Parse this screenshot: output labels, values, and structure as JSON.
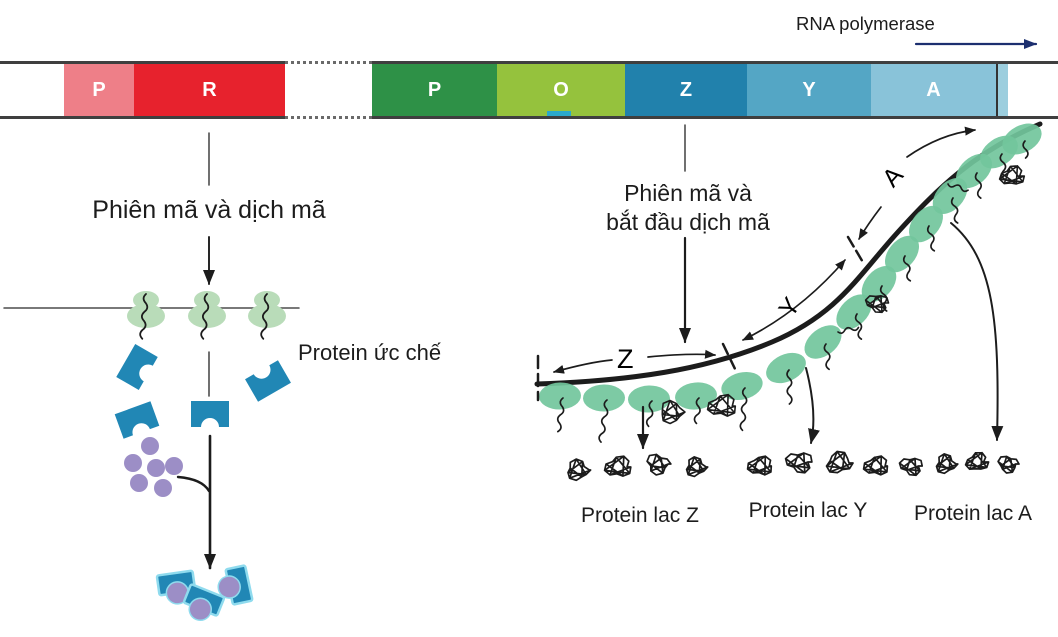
{
  "top": {
    "rna_polymerase_label": "RNA polymerase"
  },
  "gene_bar": {
    "segments": [
      {
        "label": "P",
        "color": "#ee7f88"
      },
      {
        "label": "R",
        "color": "#e7222d"
      },
      {
        "label": "",
        "color": "#ffffff"
      },
      {
        "label": "P",
        "color": "#2e9147"
      },
      {
        "label": "O",
        "color": "#95c23d"
      },
      {
        "label": "Z",
        "color": "#2181ac"
      },
      {
        "label": "Y",
        "color": "#54a6c5"
      },
      {
        "label": "A",
        "color": "#89c3d9"
      }
    ]
  },
  "left_pathway": {
    "step_label": "Phiên mã và dịch mã",
    "repressor_label": "Protein ức chế"
  },
  "right_pathway": {
    "step_line1": "Phiên mã và",
    "step_line2": "bắt đầu dịch mã",
    "mrna_segment_labels": {
      "z": "Z",
      "y": "Y",
      "a": "A"
    },
    "protein_labels": [
      "Protein lac Z",
      "Protein lac Y",
      "Protein lac A"
    ]
  },
  "icons": {
    "ribosome": "green-oval",
    "repressor_protein": "notched-blue-square",
    "inducer_molecule": "purple-circle",
    "repressor_inducer_complex": "blue-square-with-purple-circle",
    "mrna": "thick-curved-line",
    "protein_product": "scribble-blob"
  },
  "colors": {
    "bar_border": "#3f3f3f",
    "divider": "#333333",
    "strip": "#9ccede",
    "operator_notch": "#2aa9cb",
    "navy_arrow": "#1c2f6f",
    "ink": "#1c1c1c",
    "line_gray": "#4d4d4d",
    "ribosome_left": "#b9dcb9",
    "ribosome_right": "#72c59c",
    "repressor": "#2187b5",
    "inducer": "#9c8ec6",
    "complex_outline": "#8fdbee"
  }
}
